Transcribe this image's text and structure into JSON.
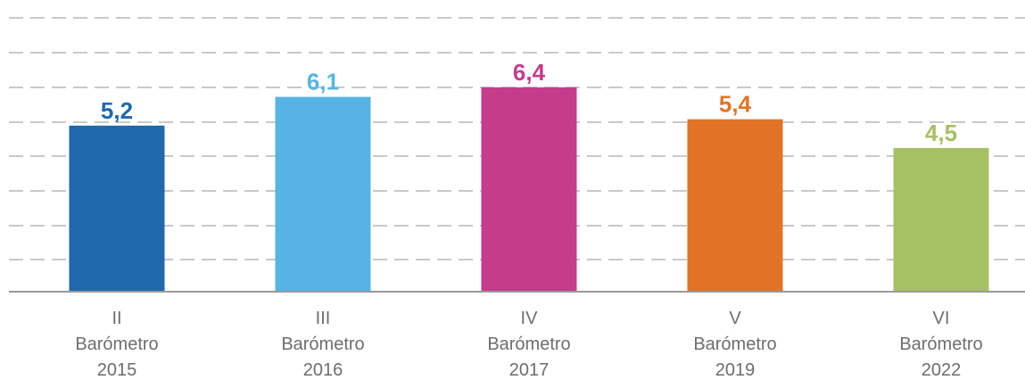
{
  "chart_data": {
    "type": "bar",
    "title": "",
    "xlabel": "",
    "ylabel": "",
    "ylim": [
      0,
      7
    ],
    "grid": true,
    "categories": [
      [
        "II",
        "Barómetro",
        "2015"
      ],
      [
        "III",
        "Barómetro",
        "2016"
      ],
      [
        "IV",
        "Barómetro",
        "2017"
      ],
      [
        "V",
        "Barómetro",
        "2019"
      ],
      [
        "VI",
        "Barómetro",
        "2022"
      ]
    ],
    "values": [
      5.2,
      6.1,
      6.4,
      5.4,
      4.5
    ],
    "value_labels": [
      "5,2",
      "6,1",
      "6,4",
      "5,4",
      "4,5"
    ],
    "colors": [
      "#1f69ad",
      "#56b4e4",
      "#c43c8b",
      "#e07325",
      "#a6c064"
    ]
  }
}
